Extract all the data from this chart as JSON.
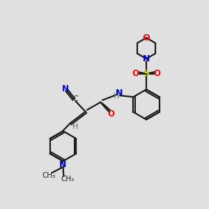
{
  "bg_color": "#e0e0e0",
  "bond_color": "#1a1a1a",
  "atom_colors": {
    "N": "#0000cc",
    "O": "#ff0000",
    "S": "#cccc00",
    "C": "#1a1a1a",
    "H": "#507070",
    "CN_N": "#0000cc"
  },
  "figsize": [
    3.0,
    3.0
  ],
  "dpi": 100
}
